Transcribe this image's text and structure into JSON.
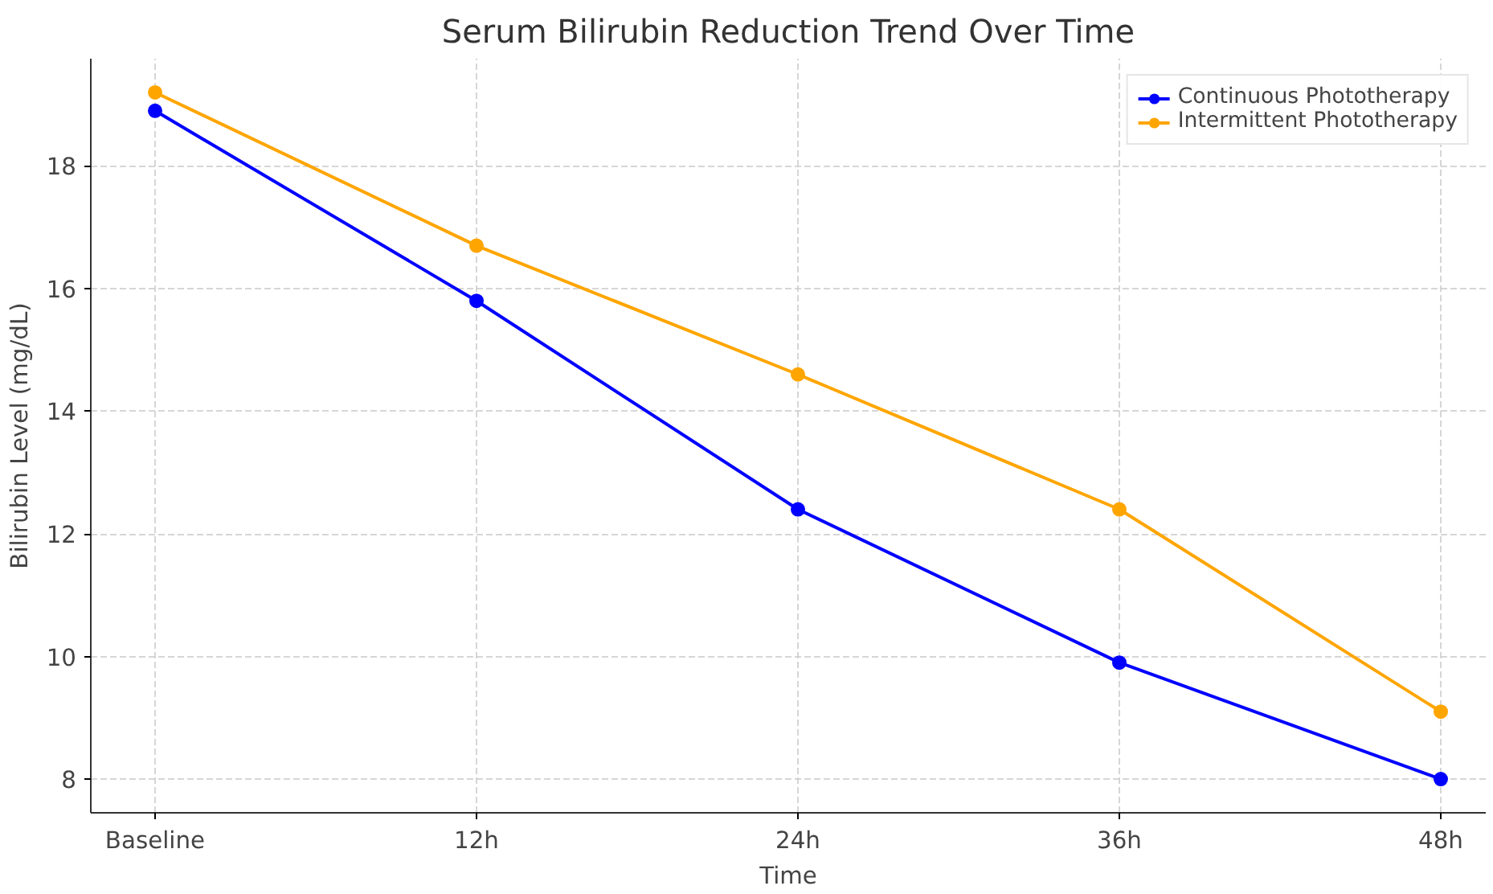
{
  "chart_data": {
    "type": "line",
    "title": "Serum Bilirubin Reduction Trend Over Time",
    "xlabel": "Time",
    "ylabel": "Bilirubin Level (mg/dL)",
    "categories": [
      "Baseline",
      "12h",
      "24h",
      "36h",
      "48h"
    ],
    "series": [
      {
        "name": "Continuous Phototherapy",
        "color": "#0000ff",
        "values": [
          18.9,
          15.8,
          12.4,
          9.9,
          8.0
        ]
      },
      {
        "name": "Intermittent Phototherapy",
        "color": "#ffa500",
        "values": [
          19.2,
          16.7,
          14.6,
          12.4,
          9.1
        ]
      }
    ],
    "ylim": [
      7.45,
      19.75
    ],
    "yticks": [
      8,
      10,
      12,
      14,
      16,
      18
    ],
    "grid": true,
    "legend": "top right",
    "marker": "circle",
    "line_style": "solid"
  }
}
